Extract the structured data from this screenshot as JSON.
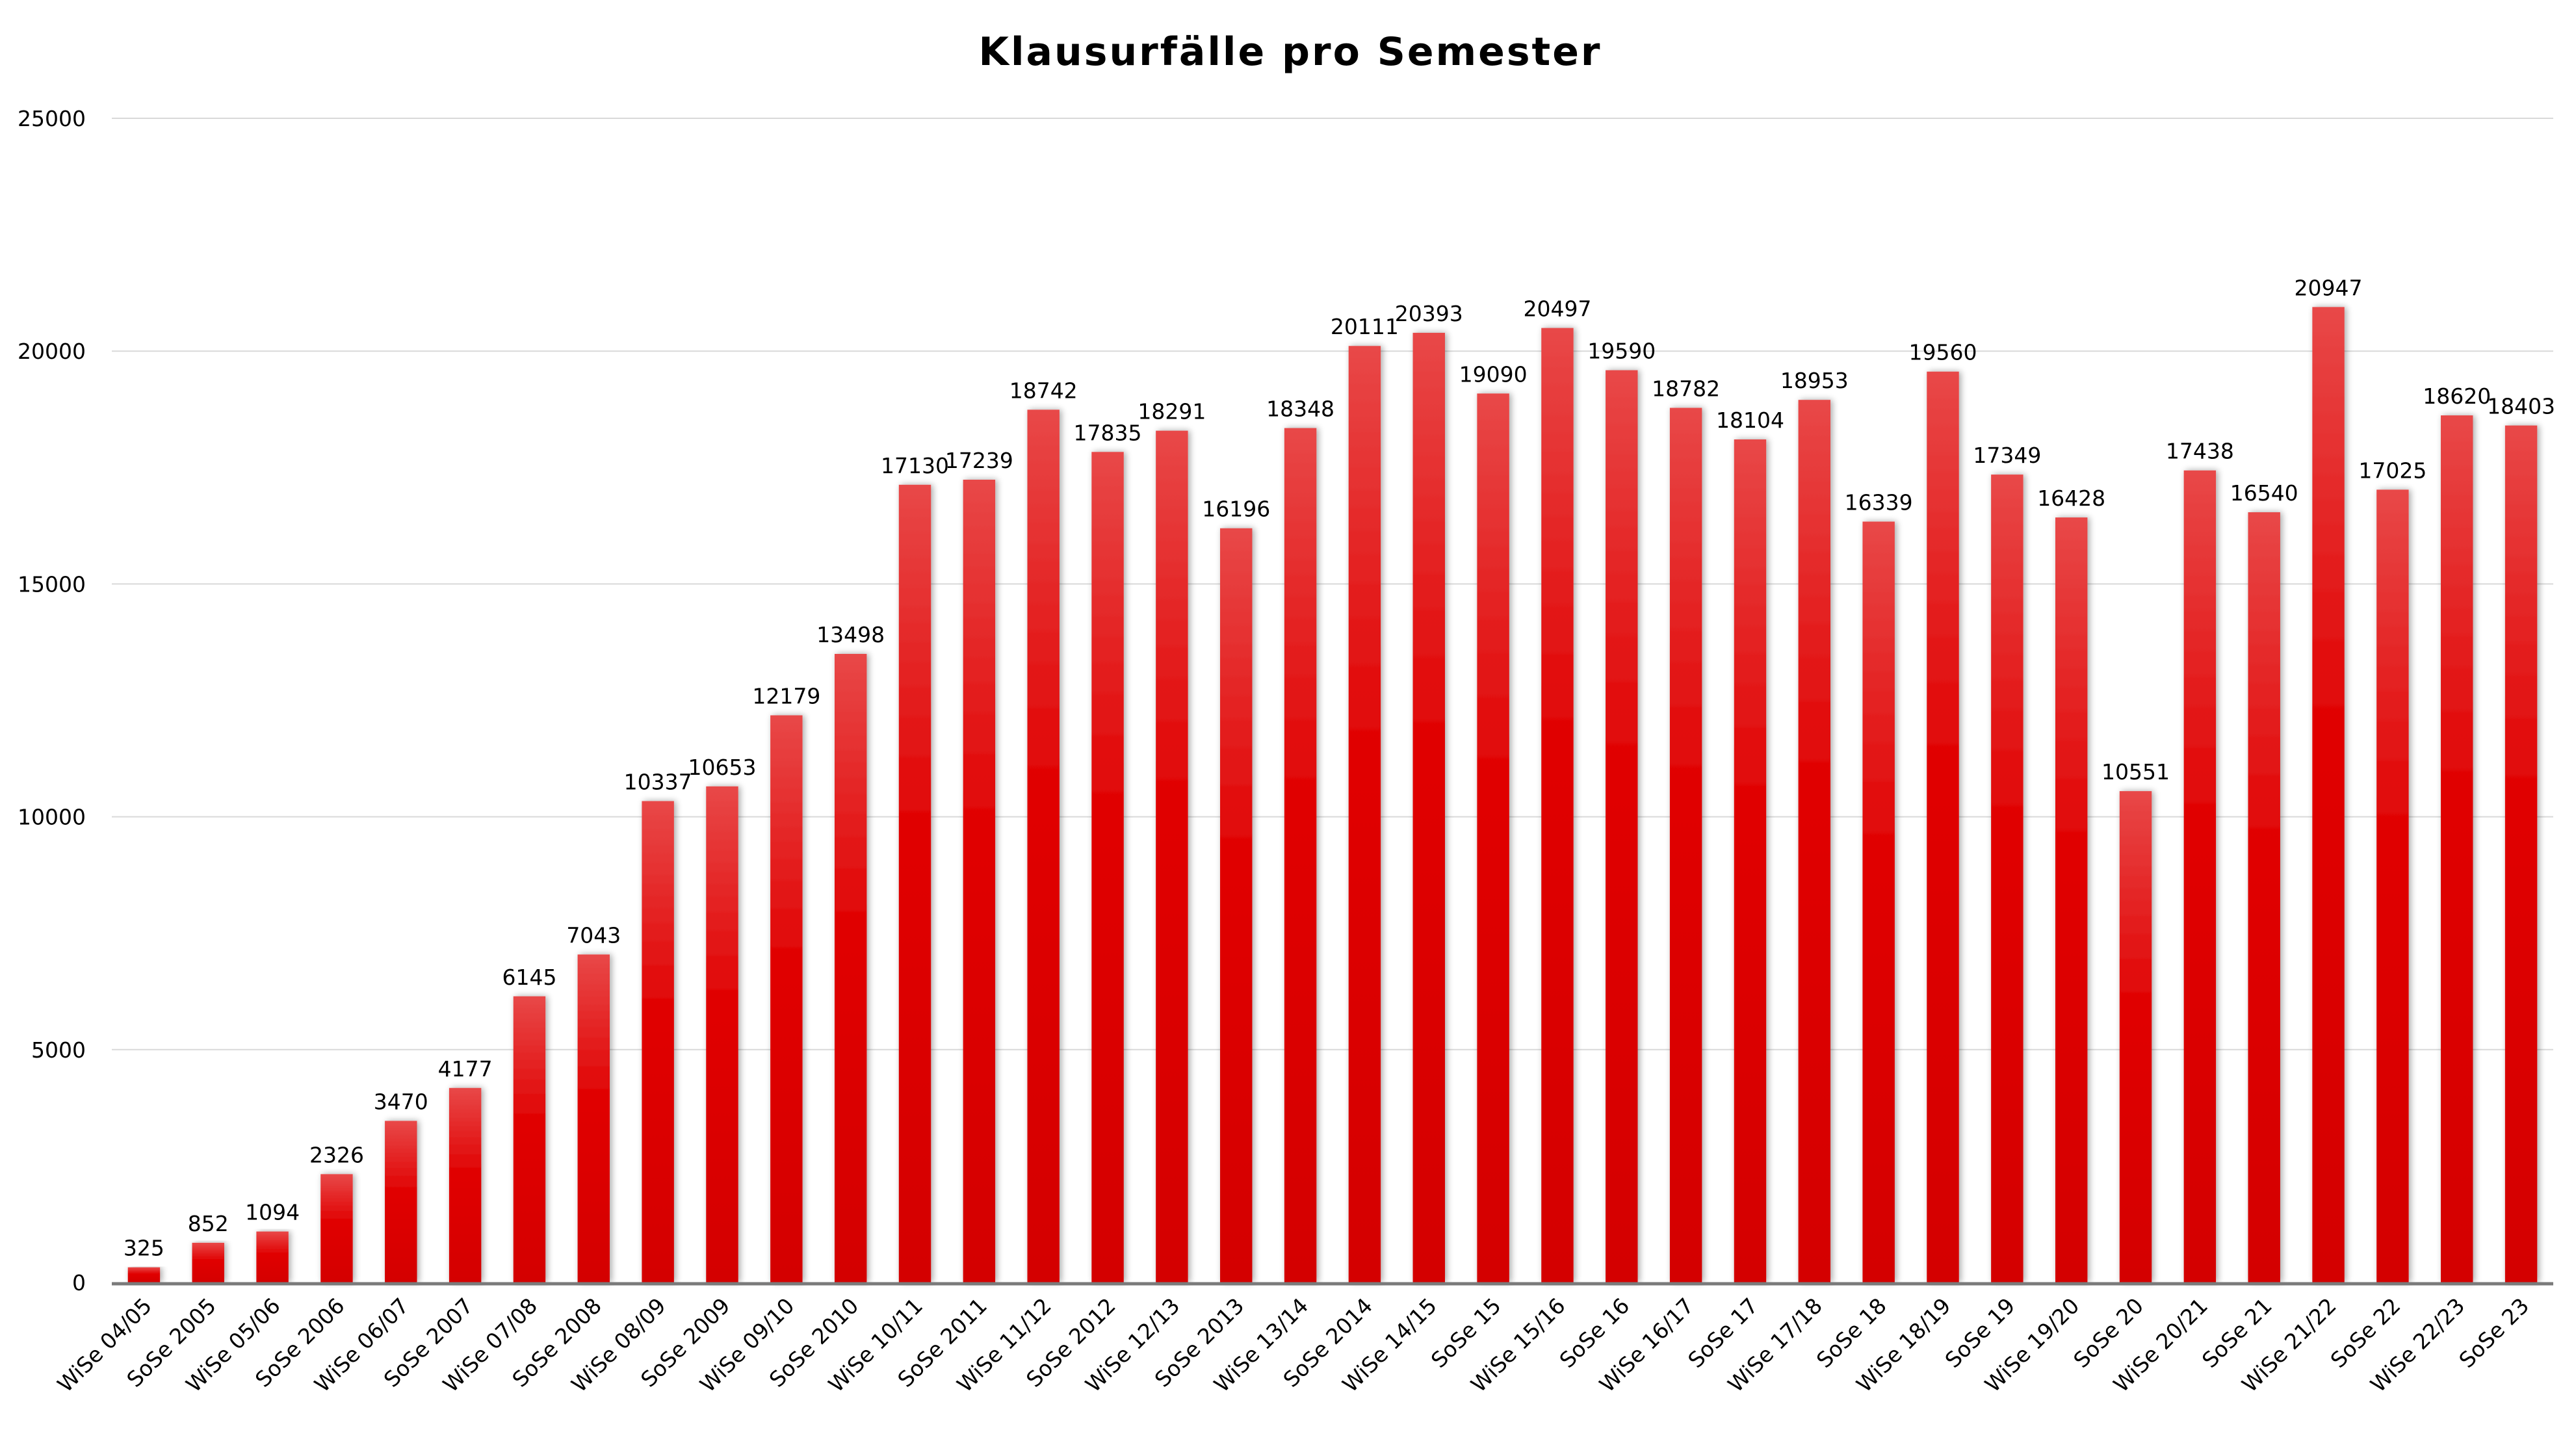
{
  "chart_data": {
    "type": "bar",
    "title": "Klausurfälle pro Semester",
    "xlabel": "",
    "ylabel": "",
    "ylim": [
      0,
      25000
    ],
    "yticks": [
      0,
      5000,
      10000,
      15000,
      20000,
      25000
    ],
    "grid": true,
    "legend": "none",
    "bar_color": "#e00000",
    "bar_color_top": "#e84848",
    "categories": [
      "WiSe 04/05",
      "SoSe 2005",
      "WiSe 05/06",
      "SoSe 2006",
      "WiSe 06/07",
      "SoSe 2007",
      "WiSe 07/08",
      "SoSe 2008",
      "WiSe 08/09",
      "SoSe 2009",
      "WiSe 09/10",
      "SoSe 2010",
      "WiSe 10/11",
      "SoSe 2011",
      "WiSe 11/12",
      "SoSe 2012",
      "WiSe 12/13",
      "SoSe 2013",
      "WiSe 13/14",
      "SoSe 2014",
      "WiSe 14/15",
      "SoSe 15",
      "WiSe 15/16",
      "SoSe 16",
      "WiSe 16/17",
      "SoSe 17",
      "WiSe 17/18",
      "SoSe 18",
      "WiSe 18/19",
      "SoSe 19",
      "WiSe 19/20",
      "SoSe 20",
      "WiSe 20/21",
      "SoSe 21",
      "WiSe 21/22",
      "SoSe 22",
      "WiSe 22/23",
      "SoSe 23"
    ],
    "values": [
      325,
      852,
      1094,
      2326,
      3470,
      4177,
      6145,
      7043,
      10337,
      10653,
      12179,
      13498,
      17130,
      17239,
      18742,
      17835,
      18291,
      16196,
      18348,
      20111,
      20393,
      19090,
      20497,
      19590,
      18782,
      18104,
      18953,
      16339,
      19560,
      17349,
      16428,
      10551,
      17438,
      16540,
      20947,
      17025,
      18620,
      18403
    ]
  }
}
